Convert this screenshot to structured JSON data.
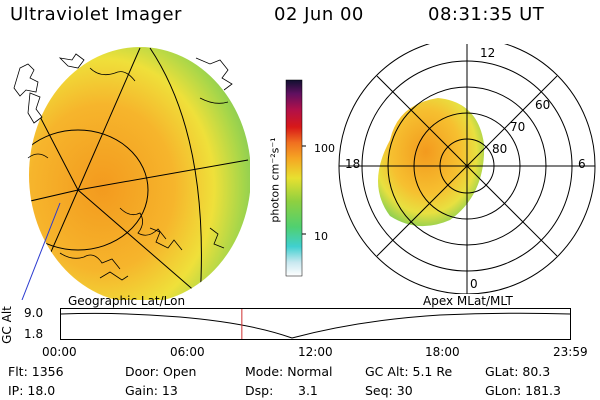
{
  "header": {
    "instrument": "Ultraviolet Imager",
    "date": "02 Jun 00",
    "time": "08:31:35 UT"
  },
  "colorbar": {
    "unit_label": "photon cm⁻²s⁻¹",
    "tick_100": "100",
    "tick_10": "10"
  },
  "polar_plot": {
    "mlt_top": "12",
    "mlt_left": "18",
    "mlt_right": "6",
    "mlt_bottom": "0",
    "lat_60": "60",
    "lat_70": "70",
    "lat_80": "80"
  },
  "panel_labels": {
    "left": "Geographic Lat/Lon",
    "right": "Apex MLat/MLT"
  },
  "altitude_plot": {
    "ylabel": "GC Alt",
    "y_top": "9.0",
    "y_bottom": "1.8",
    "x_ticks": [
      "00:00",
      "06:00",
      "12:00",
      "18:00",
      "23:59"
    ],
    "current_time_fraction": 0.3553
  },
  "info": {
    "row1": {
      "flt": "Flt: 1356",
      "door": "Door: Open",
      "mode": "Mode: Normal",
      "gcalt": "GC Alt: 5.1 Re",
      "glat": "GLat: 80.3"
    },
    "row2": {
      "ip": "IP: 18.0",
      "gain": "Gain: 13",
      "dsp_label": "Dsp:",
      "dsp_value": "3.1",
      "seq": "Seq: 30",
      "glon": "GLon: 181.3"
    }
  },
  "colors": {
    "orange": "#f5a623",
    "yellow": "#f0e030",
    "green": "#8ed040",
    "marker": "#d03030"
  }
}
